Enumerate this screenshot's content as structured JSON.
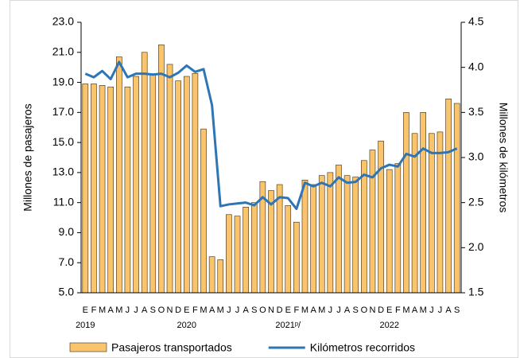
{
  "chart_data": {
    "type": "bar_line",
    "categories": [
      "E",
      "F",
      "M",
      "A",
      "M",
      "J",
      "J",
      "A",
      "S",
      "O",
      "N",
      "D",
      "E",
      "F",
      "M",
      "A",
      "M",
      "J",
      "J",
      "A",
      "S",
      "O",
      "N",
      "D",
      "E",
      "F",
      "M",
      "A",
      "M",
      "J",
      "J",
      "A",
      "S",
      "O",
      "N",
      "D",
      "E",
      "F",
      "M",
      "A",
      "M",
      "J",
      "J",
      "A",
      "S"
    ],
    "years": [
      "2019",
      null,
      null,
      null,
      null,
      null,
      null,
      null,
      null,
      null,
      null,
      null,
      "2020",
      null,
      null,
      null,
      null,
      null,
      null,
      null,
      null,
      null,
      null,
      null,
      "2021ᵖ/",
      null,
      null,
      null,
      null,
      null,
      null,
      null,
      null,
      null,
      null,
      null,
      "2022",
      null,
      null,
      null,
      null,
      null,
      null,
      null,
      null
    ],
    "ylabel": "Millones de pasajeros",
    "y2label": "Millones de kilómetros",
    "ylim": [
      5,
      23
    ],
    "yticks": [
      {
        "value": 5,
        "label": "5.0"
      },
      {
        "value": 7,
        "label": "7.0"
      },
      {
        "value": 9,
        "label": "9.0"
      },
      {
        "value": 11,
        "label": "11.0"
      },
      {
        "value": 13,
        "label": "13.0"
      },
      {
        "value": 15,
        "label": "15.0"
      },
      {
        "value": 17,
        "label": "17.0"
      },
      {
        "value": 19,
        "label": "19.0"
      },
      {
        "value": 21,
        "label": "21.0"
      },
      {
        "value": 23,
        "label": "23.0"
      }
    ],
    "y2lim": [
      1.5,
      4.5
    ],
    "y2ticks": [
      1.5,
      {
        "value": 2,
        "label": "2.0"
      },
      2.5,
      {
        "value": 3,
        "label": "3.0"
      },
      3.5,
      {
        "value": 4,
        "label": "4.0"
      },
      4.5
    ],
    "series": [
      {
        "name": "Pasajeros transportados",
        "type": "bar",
        "color": "#f9c46b",
        "values": [
          18.9,
          18.9,
          18.8,
          18.7,
          20.7,
          18.7,
          19.4,
          21.0,
          19.5,
          21.5,
          20.2,
          19.1,
          19.4,
          19.6,
          15.9,
          7.4,
          7.2,
          10.2,
          10.1,
          10.7,
          11.0,
          12.4,
          11.8,
          12.2,
          10.8,
          9.7,
          12.5,
          12.2,
          12.8,
          13.0,
          13.5,
          12.8,
          12.7,
          13.8,
          14.5,
          15.1,
          13.2,
          13.6,
          17.0,
          15.6,
          17.0,
          15.6,
          15.7,
          17.9,
          17.6
        ]
      },
      {
        "name": "Kilómetros recorridos",
        "type": "line",
        "axis": "y2",
        "color": "#2e75b6",
        "values": [
          3.93,
          3.89,
          3.96,
          3.87,
          4.06,
          3.89,
          3.93,
          3.93,
          3.92,
          3.93,
          3.89,
          3.94,
          4.02,
          3.95,
          3.98,
          3.58,
          2.46,
          2.48,
          2.49,
          2.5,
          2.47,
          2.56,
          2.48,
          2.56,
          2.55,
          2.43,
          2.72,
          2.68,
          2.72,
          2.68,
          2.78,
          2.72,
          2.73,
          2.81,
          2.78,
          2.88,
          2.92,
          2.9,
          3.04,
          3.01,
          3.1,
          3.05,
          3.05,
          3.06,
          3.1
        ]
      }
    ]
  }
}
